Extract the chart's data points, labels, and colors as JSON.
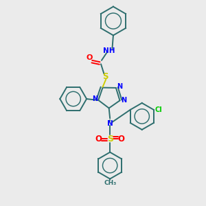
{
  "bg_color": "#ebebeb",
  "bond_color": "#2d6e6e",
  "n_color": "#0000ff",
  "o_color": "#ff0000",
  "s_color": "#cccc00",
  "cl_color": "#00cc00",
  "lw": 1.4,
  "figsize": [
    3.0,
    3.0
  ],
  "dpi": 100,
  "xlim": [
    0,
    10
  ],
  "ylim": [
    0,
    10
  ]
}
